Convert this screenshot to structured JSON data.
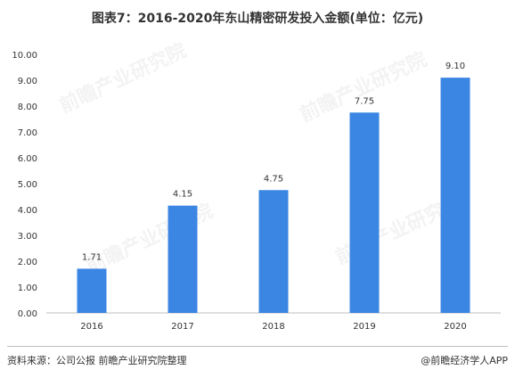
{
  "page": {
    "title": "图表7：2016-2020年东山精密研发投入金额(单位：亿元)",
    "source": "资料来源：公司公报 前瞻产业研究院整理",
    "credit": "@前瞻经济学人APP",
    "watermarks": [
      "前瞻产业研究院",
      "前瞻产业研究院",
      "前瞻产业研究院",
      "前瞻产业研究院"
    ]
  },
  "chart_data": {
    "type": "bar",
    "title": "图表7：2016-2020年东山精密研发投入金额(单位：亿元)",
    "xlabel": "",
    "ylabel": "",
    "categories": [
      "2016",
      "2017",
      "2018",
      "2019",
      "2020"
    ],
    "values": [
      1.71,
      4.15,
      4.75,
      7.75,
      9.1
    ],
    "value_labels": [
      "1.71",
      "4.15",
      "4.75",
      "7.75",
      "9.10"
    ],
    "ylim": [
      0,
      10
    ],
    "yticks": [
      "0.00",
      "1.00",
      "2.00",
      "3.00",
      "4.00",
      "5.00",
      "6.00",
      "7.00",
      "8.00",
      "9.00",
      "10.00"
    ],
    "grid": false,
    "legend": "none",
    "bar_color": "#3b86e3"
  }
}
